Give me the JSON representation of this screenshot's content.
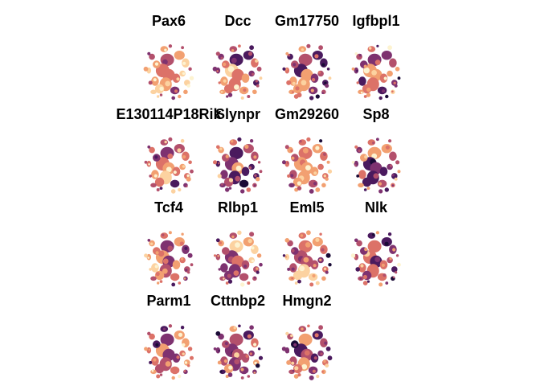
{
  "chart_data": {
    "type": "scatter",
    "layout": "facet-grid",
    "columns": 4,
    "panels": [
      {
        "title": "Pax6"
      },
      {
        "title": "Dcc"
      },
      {
        "title": "Gm17750"
      },
      {
        "title": "Igfbpl1"
      },
      {
        "title": "E130114P18Rik"
      },
      {
        "title": "Slynpr"
      },
      {
        "title": "Gm29260"
      },
      {
        "title": "Sp8"
      },
      {
        "title": "Tcf4"
      },
      {
        "title": "Rlbp1"
      },
      {
        "title": "Eml5"
      },
      {
        "title": "Nlk"
      },
      {
        "title": "Parm1"
      },
      {
        "title": "Cttnbp2"
      },
      {
        "title": "Hmgn2"
      }
    ],
    "colormap": [
      "#1a0b36",
      "#4a1a5e",
      "#7e3270",
      "#b3506c",
      "#dc7268",
      "#f2a071",
      "#fcd2a0",
      "#fdf3d0"
    ],
    "legend": "none",
    "grid": false
  }
}
